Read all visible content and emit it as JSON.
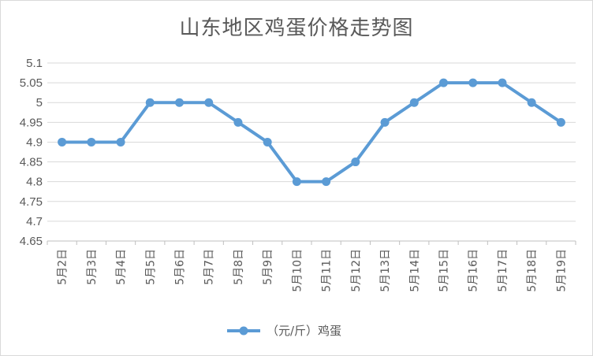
{
  "chart_data": {
    "type": "line",
    "title": "山东地区鸡蛋价格走势图",
    "categories": [
      "5月2日",
      "5月3日",
      "5月4日",
      "5月5日",
      "5月6日",
      "5月7日",
      "5月8日",
      "5月9日",
      "5月10日",
      "5月11日",
      "5月12日",
      "5月13日",
      "5月14日",
      "5月15日",
      "5月16日",
      "5月17日",
      "5月18日",
      "5月19日"
    ],
    "series": [
      {
        "name": "（元/斤）鸡蛋",
        "values": [
          4.9,
          4.9,
          4.9,
          5.0,
          5.0,
          5.0,
          4.95,
          4.9,
          4.8,
          4.8,
          4.85,
          4.95,
          5.0,
          5.05,
          5.05,
          5.05,
          5.0,
          4.95
        ],
        "color": "#5b9bd5"
      }
    ],
    "yticks": [
      "5.1",
      "5.05",
      "5",
      "4.95",
      "4.9",
      "4.85",
      "4.8",
      "4.75",
      "4.7",
      "4.65"
    ],
    "ylim": [
      4.65,
      5.1
    ],
    "grid": true,
    "legend": "bottom"
  }
}
